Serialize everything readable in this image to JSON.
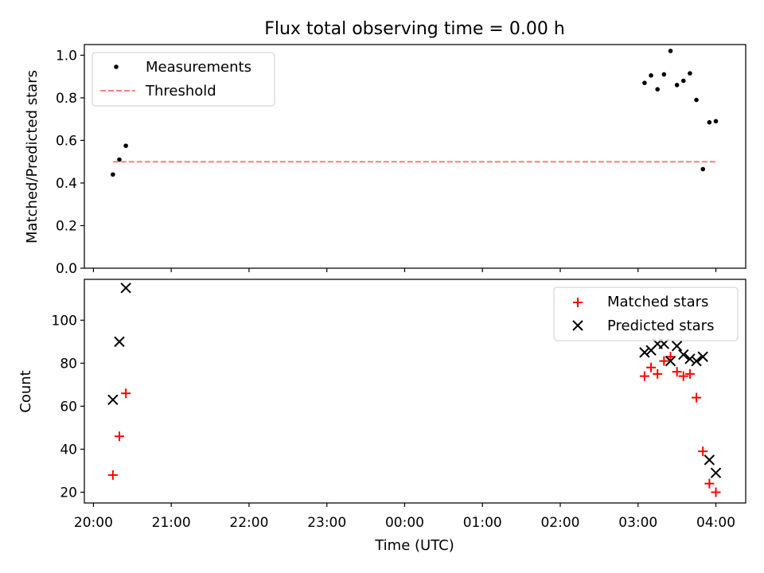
{
  "chart_data": [
    {
      "type": "scatter",
      "title": "Flux total observing time = 0.00 h",
      "xlabel": "",
      "ylabel": "Matched/Predicted stars",
      "xlim": [
        "19:53",
        "04:23"
      ],
      "ylim": [
        0,
        1.05
      ],
      "yticks": [
        "0.0",
        "0.2",
        "0.4",
        "0.6",
        "0.8",
        "1.0"
      ],
      "grid": false,
      "legend_position": "top-left",
      "series": [
        {
          "name": "Measurements",
          "marker": "dot",
          "color": "#000000",
          "points": [
            {
              "x": "20:15",
              "y": 0.44
            },
            {
              "x": "20:20",
              "y": 0.51
            },
            {
              "x": "20:25",
              "y": 0.575
            },
            {
              "x": "03:05",
              "y": 0.87
            },
            {
              "x": "03:10",
              "y": 0.905
            },
            {
              "x": "03:15",
              "y": 0.84
            },
            {
              "x": "03:20",
              "y": 0.91
            },
            {
              "x": "03:25",
              "y": 1.02
            },
            {
              "x": "03:30",
              "y": 0.86
            },
            {
              "x": "03:35",
              "y": 0.88
            },
            {
              "x": "03:40",
              "y": 0.915
            },
            {
              "x": "03:45",
              "y": 0.79
            },
            {
              "x": "03:50",
              "y": 0.465
            },
            {
              "x": "03:55",
              "y": 0.685
            },
            {
              "x": "04:00",
              "y": 0.69
            }
          ]
        },
        {
          "name": "Threshold",
          "marker": "dashed-line",
          "color": "#ff7f7f",
          "points": [
            {
              "x": "20:15",
              "y": 0.5
            },
            {
              "x": "04:00",
              "y": 0.5
            }
          ]
        }
      ]
    },
    {
      "type": "scatter",
      "title": "",
      "xlabel": "Time (UTC)",
      "ylabel": "Count",
      "xlim": [
        "19:53",
        "04:23"
      ],
      "ylim": [
        15,
        119
      ],
      "yticks": [
        "20",
        "40",
        "60",
        "80",
        "100"
      ],
      "xticks": [
        "20:00",
        "21:00",
        "22:00",
        "23:00",
        "00:00",
        "01:00",
        "02:00",
        "03:00",
        "04:00"
      ],
      "grid": false,
      "legend_position": "top-right",
      "series": [
        {
          "name": "Matched stars",
          "marker": "plus",
          "color": "#ff0000",
          "points": [
            {
              "x": "20:15",
              "y": 28
            },
            {
              "x": "20:20",
              "y": 46
            },
            {
              "x": "20:25",
              "y": 66
            },
            {
              "x": "03:05",
              "y": 74
            },
            {
              "x": "03:10",
              "y": 78
            },
            {
              "x": "03:15",
              "y": 75
            },
            {
              "x": "03:20",
              "y": 81
            },
            {
              "x": "03:25",
              "y": 83
            },
            {
              "x": "03:30",
              "y": 76
            },
            {
              "x": "03:35",
              "y": 74
            },
            {
              "x": "03:40",
              "y": 75
            },
            {
              "x": "03:45",
              "y": 64
            },
            {
              "x": "03:50",
              "y": 39
            },
            {
              "x": "03:55",
              "y": 24
            },
            {
              "x": "04:00",
              "y": 20
            }
          ]
        },
        {
          "name": "Predicted stars",
          "marker": "x",
          "color": "#000000",
          "points": [
            {
              "x": "20:15",
              "y": 63
            },
            {
              "x": "20:20",
              "y": 90
            },
            {
              "x": "20:25",
              "y": 115
            },
            {
              "x": "03:05",
              "y": 85
            },
            {
              "x": "03:10",
              "y": 86
            },
            {
              "x": "03:15",
              "y": 89
            },
            {
              "x": "03:20",
              "y": 89
            },
            {
              "x": "03:25",
              "y": 81
            },
            {
              "x": "03:30",
              "y": 88
            },
            {
              "x": "03:35",
              "y": 84
            },
            {
              "x": "03:40",
              "y": 82
            },
            {
              "x": "03:45",
              "y": 81
            },
            {
              "x": "03:50",
              "y": 83
            },
            {
              "x": "03:55",
              "y": 35
            },
            {
              "x": "04:00",
              "y": 29
            }
          ]
        }
      ]
    }
  ]
}
